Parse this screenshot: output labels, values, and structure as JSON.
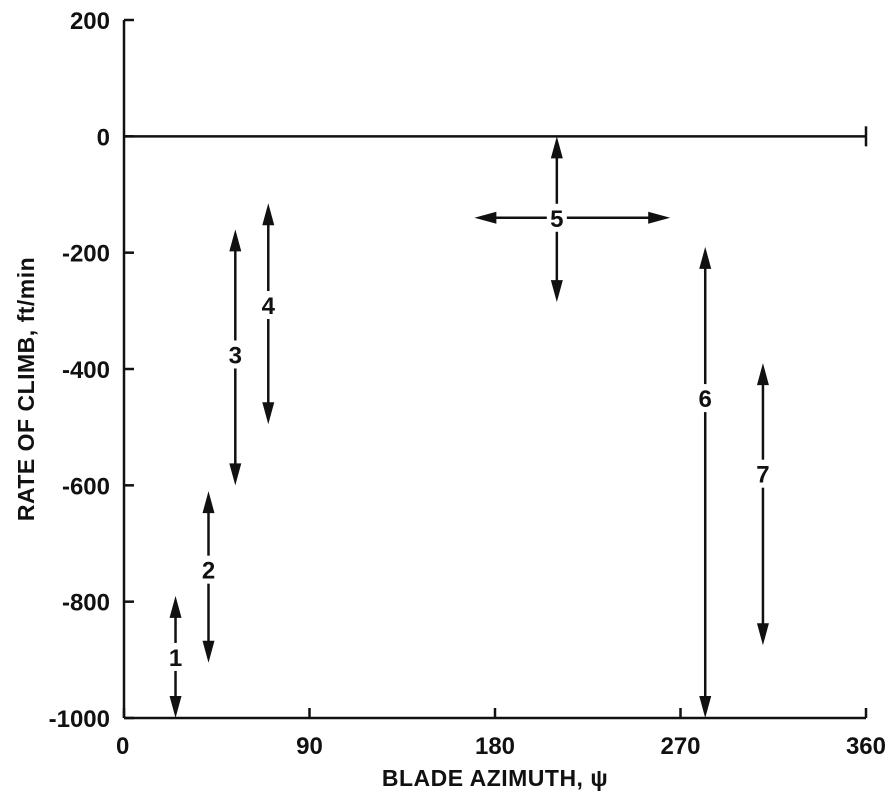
{
  "chart_data": {
    "type": "scatter",
    "xlabel": "BLADE AZIMUTH, ψ",
    "ylabel": "RATE OF CLIMB, ft/min",
    "xlim": [
      0,
      360
    ],
    "ylim": [
      -1000,
      200
    ],
    "xticks": [
      0,
      90,
      180,
      270,
      360
    ],
    "yticks": [
      200,
      0,
      -200,
      -400,
      -600,
      -800,
      -1000
    ],
    "reference_line": {
      "y": 0,
      "x_from": 0,
      "x_to": 360
    },
    "grid": false,
    "regions": [
      {
        "label": "1",
        "type": "vertical",
        "x": 25,
        "y_min": -1000,
        "y_max": -790,
        "label_y": -895
      },
      {
        "label": "2",
        "type": "vertical",
        "x": 41,
        "y_min": -905,
        "y_max": -610,
        "label_y": -745
      },
      {
        "label": "3",
        "type": "vertical",
        "x": 54,
        "y_min": -600,
        "y_max": -160,
        "label_y": -375
      },
      {
        "label": "4",
        "type": "vertical",
        "x": 70,
        "y_min": -495,
        "y_max": -115,
        "label_y": -290
      },
      {
        "label": "5",
        "type": "cross",
        "x": 210,
        "x_min": 170,
        "x_max": 265,
        "y": -140,
        "y_min": -285,
        "y_max": 0
      },
      {
        "label": "6",
        "type": "vertical",
        "x": 282,
        "y_min": -1000,
        "y_max": -190,
        "label_y": -450
      },
      {
        "label": "7",
        "type": "vertical",
        "x": 310,
        "y_min": -875,
        "y_max": -390,
        "label_y": -580
      }
    ]
  }
}
